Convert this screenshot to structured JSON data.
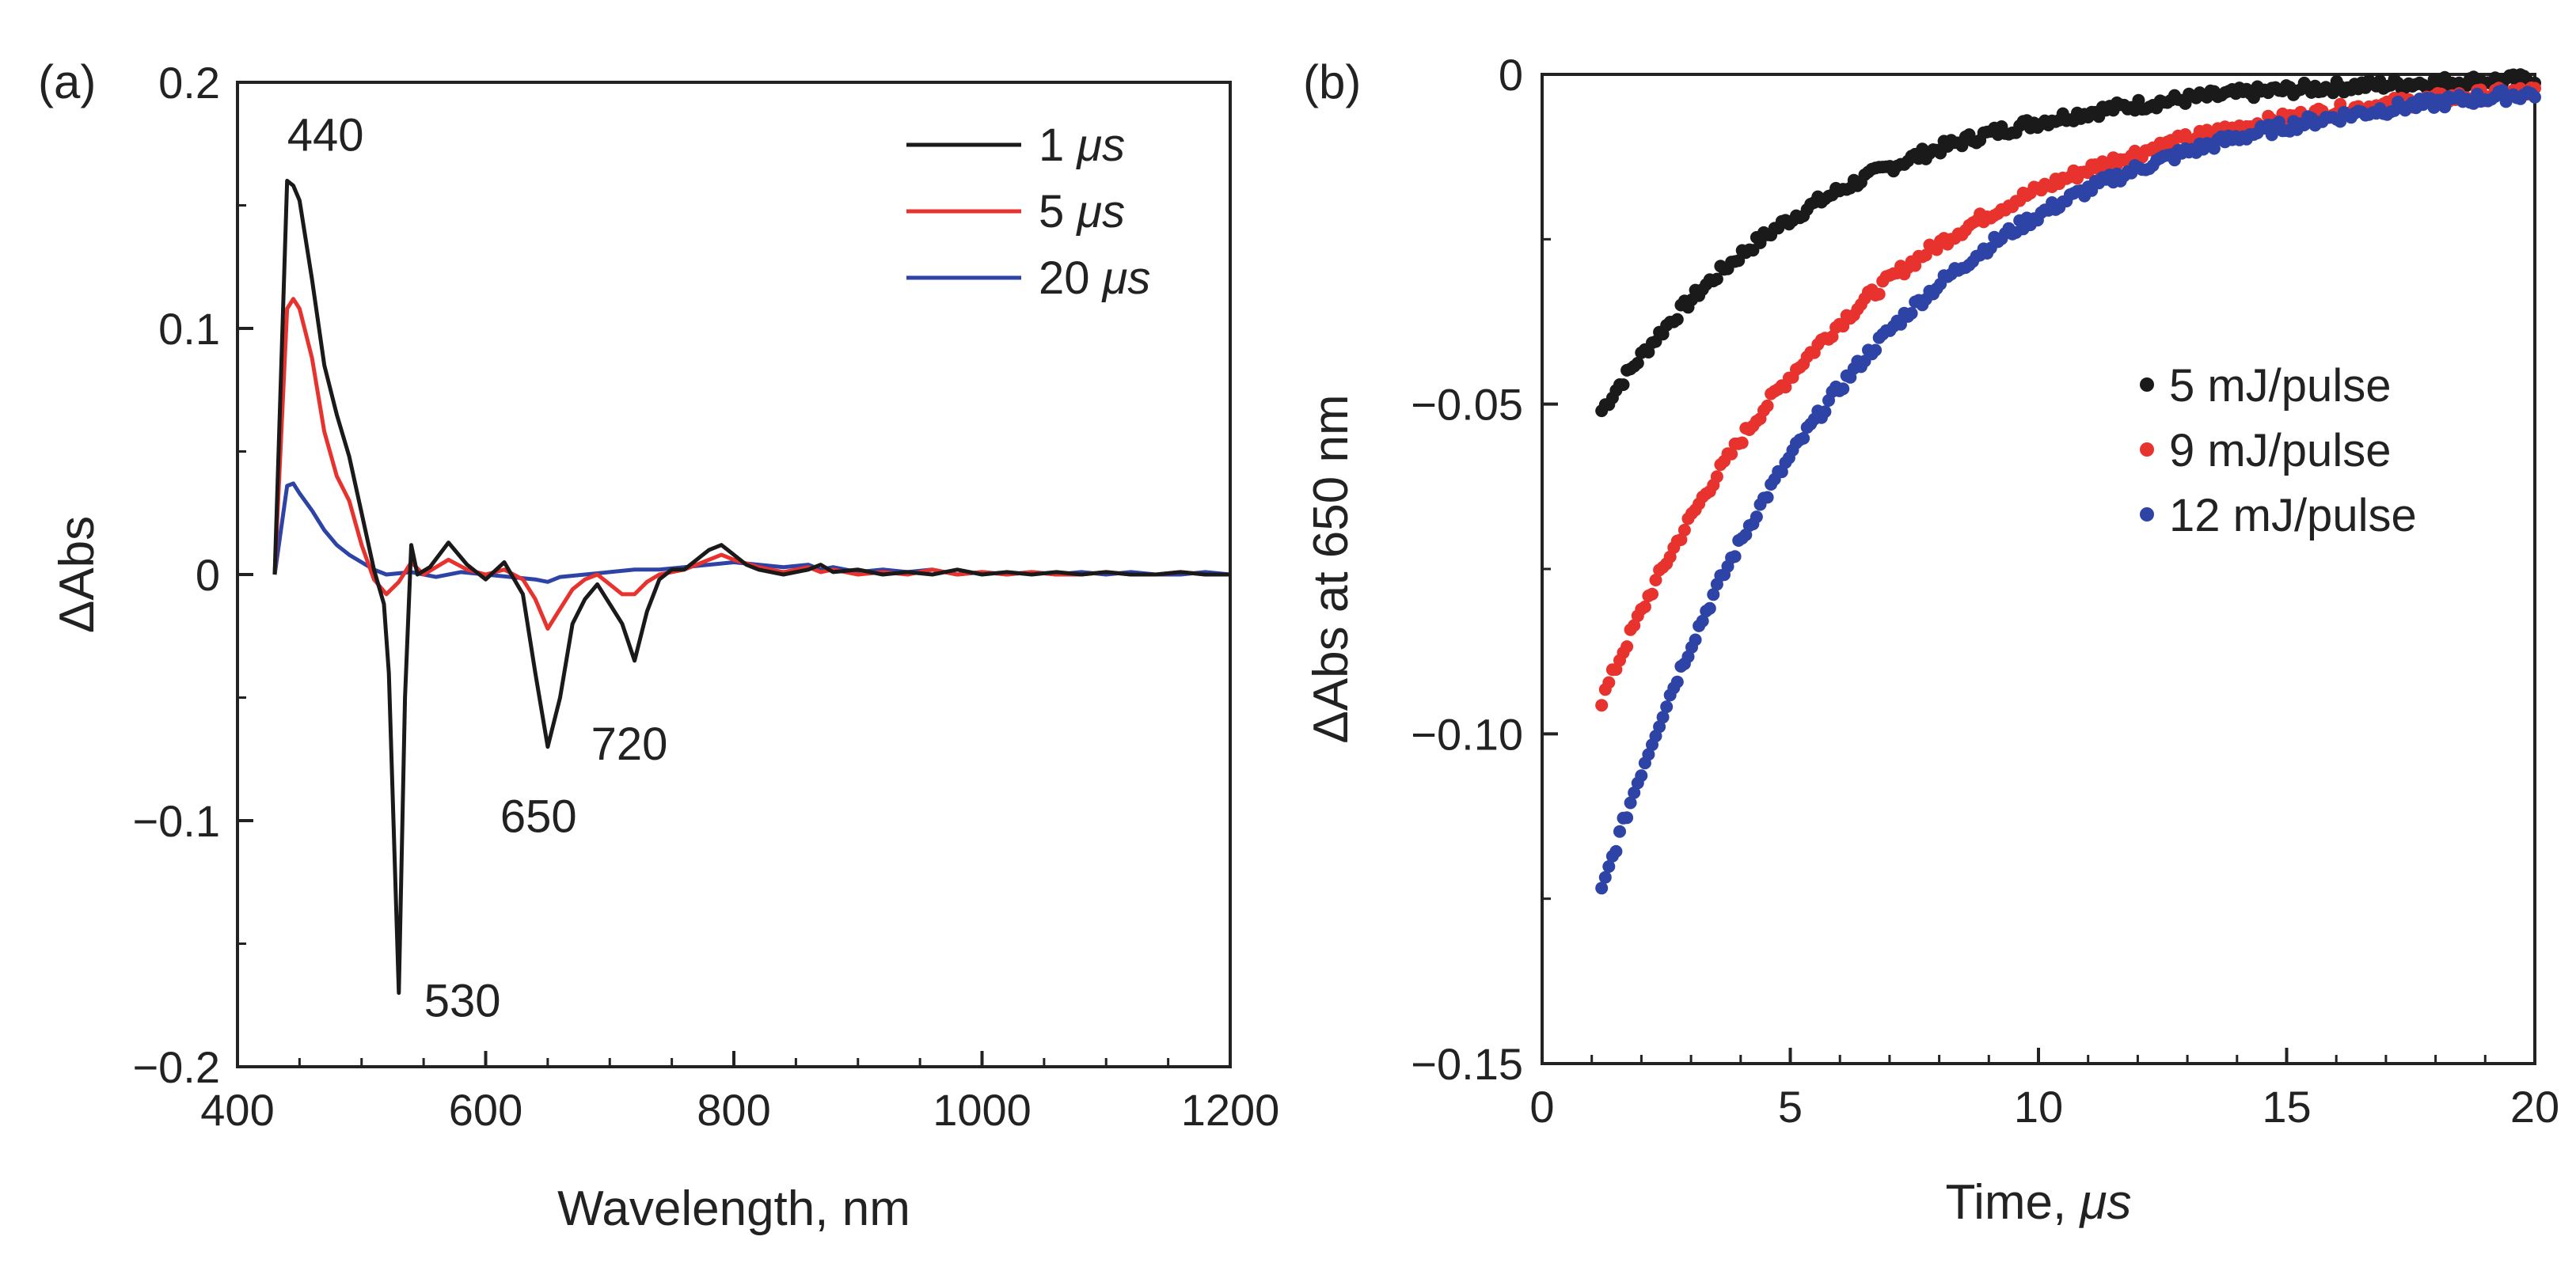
{
  "chart_data": [
    {
      "panel": "(a)",
      "type": "line",
      "title": "",
      "xlabel": "Wavelength, nm",
      "ylabel": "ΔAbs",
      "xlim": [
        400,
        1200
      ],
      "ylim": [
        -0.2,
        0.2
      ],
      "xticks": [
        400,
        600,
        800,
        1000,
        1200
      ],
      "xtick_labels": [
        "400",
        "600",
        "800",
        "1000",
        "1200"
      ],
      "yticks": [
        -0.2,
        -0.1,
        0,
        0.1,
        0.2
      ],
      "ytick_labels": [
        "−0.2",
        "−0.1",
        "0",
        "0.1",
        "0.2"
      ],
      "grid": false,
      "legend_position": "top-right",
      "series": [
        {
          "name": "1 μs",
          "label_prefix": "1 ",
          "label_unit": "μs",
          "color": "#1a1a1a",
          "x": [
            430,
            440,
            445,
            450,
            460,
            470,
            480,
            490,
            500,
            510,
            518,
            522,
            530,
            535,
            540,
            545,
            555,
            570,
            585,
            600,
            615,
            630,
            640,
            650,
            660,
            670,
            680,
            690,
            700,
            710,
            720,
            730,
            740,
            750,
            760,
            770,
            780,
            790,
            800,
            810,
            820,
            840,
            860,
            870,
            880,
            900,
            920,
            940,
            960,
            980,
            1000,
            1020,
            1040,
            1060,
            1080,
            1100,
            1120,
            1140,
            1160,
            1180,
            1200
          ],
          "y": [
            0.0,
            0.16,
            0.158,
            0.152,
            0.12,
            0.085,
            0.065,
            0.048,
            0.025,
            0.002,
            -0.012,
            -0.04,
            -0.17,
            -0.05,
            0.012,
            0.0,
            0.003,
            0.013,
            0.004,
            -0.002,
            0.005,
            -0.008,
            -0.04,
            -0.07,
            -0.05,
            -0.02,
            -0.01,
            -0.004,
            -0.012,
            -0.02,
            -0.035,
            -0.015,
            -0.002,
            0.002,
            0.002,
            0.006,
            0.01,
            0.012,
            0.008,
            0.004,
            0.002,
            0.0,
            0.002,
            0.004,
            0.001,
            0.002,
            0.0,
            0.001,
            0.0,
            0.002,
            0.0,
            0.001,
            0.0,
            0.001,
            0.0,
            0.001,
            0.0,
            0.0,
            0.001,
            0.0,
            0.0
          ]
        },
        {
          "name": "5 μs",
          "label_prefix": "5 ",
          "label_unit": "μs",
          "color": "#e8322e",
          "x": [
            430,
            440,
            445,
            450,
            460,
            470,
            480,
            490,
            500,
            510,
            520,
            530,
            540,
            550,
            560,
            570,
            585,
            600,
            615,
            630,
            640,
            650,
            660,
            670,
            680,
            690,
            700,
            710,
            720,
            730,
            740,
            760,
            780,
            790,
            800,
            820,
            840,
            860,
            870,
            880,
            900,
            920,
            940,
            960,
            980,
            1000,
            1020,
            1040,
            1060,
            1080,
            1100,
            1120,
            1140,
            1160,
            1180,
            1200
          ],
          "y": [
            0.0,
            0.108,
            0.112,
            0.108,
            0.088,
            0.058,
            0.04,
            0.03,
            0.012,
            -0.002,
            -0.008,
            -0.003,
            0.005,
            0.0,
            0.003,
            0.006,
            0.002,
            0.0,
            0.002,
            -0.002,
            -0.01,
            -0.022,
            -0.014,
            -0.006,
            -0.002,
            0.0,
            -0.004,
            -0.008,
            -0.008,
            -0.003,
            0.0,
            0.002,
            0.006,
            0.008,
            0.006,
            0.003,
            0.001,
            0.003,
            0.001,
            0.002,
            0.0,
            0.001,
            0.0,
            0.002,
            0.0,
            0.001,
            0.0,
            0.001,
            0.0,
            0.0,
            0.001,
            0.0,
            0.0,
            0.001,
            0.0,
            0.0
          ]
        },
        {
          "name": "20 μs",
          "label_prefix": "20 ",
          "label_unit": "μs",
          "color": "#2e43a6",
          "x": [
            430,
            440,
            445,
            450,
            460,
            470,
            480,
            490,
            500,
            510,
            520,
            540,
            560,
            580,
            600,
            620,
            640,
            650,
            660,
            680,
            700,
            720,
            740,
            760,
            780,
            800,
            820,
            840,
            860,
            870,
            880,
            900,
            920,
            940,
            960,
            980,
            1000,
            1020,
            1040,
            1060,
            1080,
            1100,
            1120,
            1140,
            1160,
            1180,
            1200
          ],
          "y": [
            0.0,
            0.036,
            0.037,
            0.033,
            0.026,
            0.018,
            0.012,
            0.008,
            0.005,
            0.002,
            0.0,
            0.001,
            -0.001,
            0.001,
            0.0,
            -0.001,
            -0.002,
            -0.003,
            -0.001,
            0.0,
            0.001,
            0.002,
            0.002,
            0.003,
            0.004,
            0.005,
            0.004,
            0.003,
            0.004,
            0.002,
            0.003,
            0.001,
            0.002,
            0.001,
            0.002,
            0.0,
            0.001,
            0.0,
            0.001,
            0.0,
            0.001,
            0.0,
            0.001,
            0.0,
            0.0,
            0.001,
            0.0
          ]
        }
      ],
      "annotations": [
        {
          "text": "440",
          "x": 440,
          "y": 0.16
        },
        {
          "text": "530",
          "x": 530,
          "y": -0.17
        },
        {
          "text": "650",
          "x": 650,
          "y": -0.07
        },
        {
          "text": "720",
          "x": 720,
          "y": -0.035
        }
      ]
    },
    {
      "panel": "(b)",
      "type": "scatter",
      "title": "",
      "xlabel_prefix": "Time, ",
      "xlabel_unit": "μs",
      "xlabel": "Time, μs",
      "ylabel": "ΔAbs at 650 nm",
      "xlim": [
        0,
        20
      ],
      "ylim": [
        -0.15,
        0
      ],
      "xticks": [
        0,
        5,
        10,
        15,
        20
      ],
      "xtick_labels": [
        "0",
        "5",
        "10",
        "15",
        "20"
      ],
      "yticks": [
        -0.15,
        -0.1,
        -0.05,
        0
      ],
      "ytick_labels": [
        "−0.15",
        "−0.10",
        "−0.05",
        "0"
      ],
      "grid": false,
      "legend_position": "center-right",
      "series": [
        {
          "name": "5 mJ/pulse",
          "color": "#1a1a1a",
          "model": "exponential_recovery",
          "x_start": 1.2,
          "x_end": 20,
          "y0": -0.051,
          "tau": 4.5
        },
        {
          "name": "9 mJ/pulse",
          "color": "#e8322e",
          "model": "exponential_recovery",
          "x_start": 1.2,
          "x_end": 20,
          "y0": -0.095,
          "tau": 5.2
        },
        {
          "name": "12 mJ/pulse",
          "color": "#2e43a6",
          "model": "exponential_recovery",
          "x_start": 1.2,
          "x_end": 20,
          "y0": -0.124,
          "tau": 5.0
        }
      ]
    }
  ]
}
